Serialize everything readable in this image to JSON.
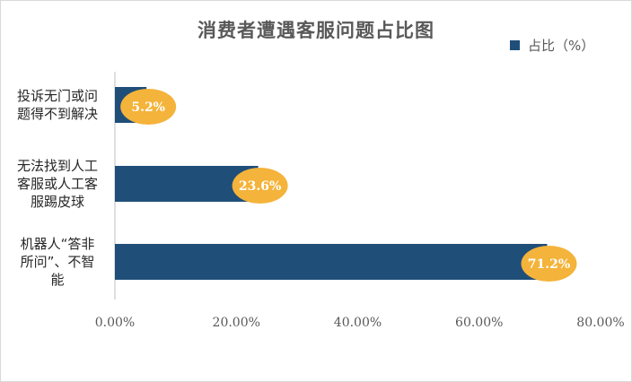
{
  "chart_data": {
    "type": "bar",
    "orientation": "horizontal",
    "title": "消费者遭遇客服问题占比图",
    "categories": [
      [
        "投诉无门或问",
        "题得不到解决"
      ],
      [
        "无法找到人工",
        "客服或人工客",
        "服踢皮球"
      ],
      [
        "机器人“答非",
        "所问”、不智",
        "能"
      ]
    ],
    "series": [
      {
        "name": "占比（%）",
        "values": [
          5.2,
          23.6,
          71.2
        ]
      }
    ],
    "data_labels": [
      "5.2%",
      "23.6%",
      "71.2%"
    ],
    "xlim": [
      0,
      80
    ],
    "xticks": [
      0,
      20,
      40,
      60,
      80
    ],
    "xtick_labels": [
      "0.00%",
      "20.00%",
      "40.00%",
      "60.00%",
      "80.00%"
    ],
    "legend_position": "top-right",
    "grid": false,
    "colors": {
      "bar": "#1f4e79",
      "label_bubble": "#f4b33a"
    }
  }
}
